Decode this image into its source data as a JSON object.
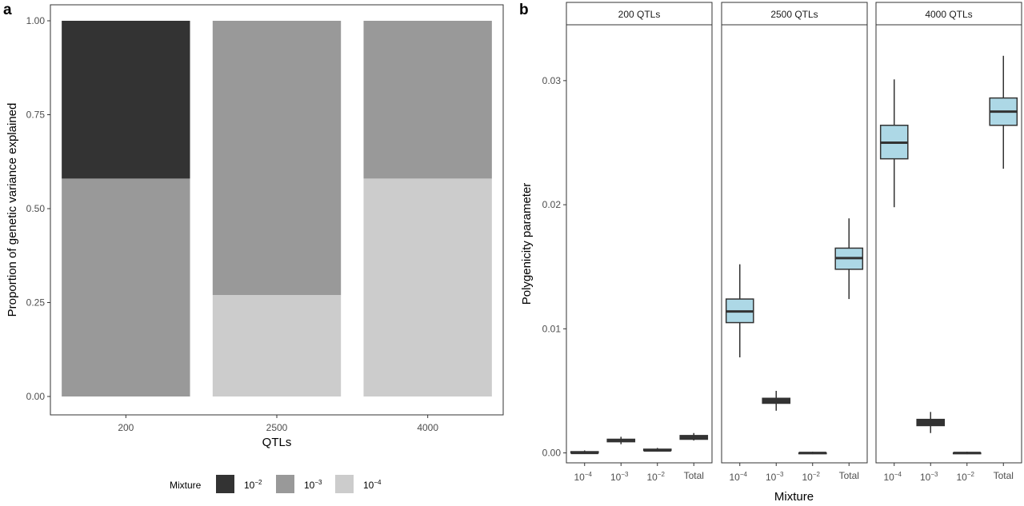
{
  "chart_data": [
    {
      "panel_label": "a",
      "type": "bar",
      "stacked": true,
      "categories": [
        "200",
        "2500",
        "4000"
      ],
      "series": [
        {
          "name": "10^-4",
          "values": [
            0.0,
            0.27,
            0.58
          ],
          "color": "#cccccc"
        },
        {
          "name": "10^-3",
          "values": [
            0.58,
            0.73,
            0.42
          ],
          "color": "#999999"
        },
        {
          "name": "10^-2",
          "values": [
            0.42,
            0.0,
            0.0
          ],
          "color": "#333333"
        }
      ],
      "xlabel": "QTLs",
      "ylabel": "Proportion of genetic variance explained",
      "ylim": [
        0,
        1
      ],
      "yticks": [
        "0.00",
        "0.25",
        "0.50",
        "0.75",
        "1.00"
      ],
      "grid": false,
      "legend": {
        "title": "Mixture",
        "placement": "bottom",
        "items": [
          {
            "base": "10",
            "exp": "−2",
            "color": "#333333"
          },
          {
            "base": "10",
            "exp": "−3",
            "color": "#999999"
          },
          {
            "base": "10",
            "exp": "−4",
            "color": "#cccccc"
          }
        ]
      }
    },
    {
      "panel_label": "b",
      "type": "box",
      "xlabel": "Mixture",
      "ylabel": "Polygenicity parameter",
      "ylim": [
        -0.0008,
        0.0345
      ],
      "yticks": [
        "0.00",
        "0.01",
        "0.02",
        "0.03"
      ],
      "ytick_values": [
        0.0,
        0.01,
        0.02,
        0.03
      ],
      "categories": [
        {
          "base": "10",
          "exp": "−4"
        },
        {
          "base": "10",
          "exp": "−3"
        },
        {
          "base": "10",
          "exp": "−2"
        },
        {
          "text": "Total"
        }
      ],
      "facets": [
        {
          "title": "200 QTLs",
          "boxes": [
            {
              "min": 0.0,
              "q1": 0.0,
              "median": 0.0,
              "q3": 0.0001,
              "max": 0.0002,
              "fill": "#333333"
            },
            {
              "min": 0.0007,
              "q1": 0.0009,
              "median": 0.001,
              "q3": 0.0011,
              "max": 0.0013,
              "fill": "#333333"
            },
            {
              "min": 0.0001,
              "q1": 0.0002,
              "median": 0.0002,
              "q3": 0.0003,
              "max": 0.0004,
              "fill": "#333333"
            },
            {
              "min": 0.001,
              "q1": 0.0011,
              "median": 0.0012,
              "q3": 0.0014,
              "max": 0.0016,
              "fill": "#333333"
            }
          ]
        },
        {
          "title": "2500 QTLs",
          "boxes": [
            {
              "min": 0.0077,
              "q1": 0.0105,
              "median": 0.0114,
              "q3": 0.0124,
              "max": 0.0152,
              "fill": "#add8e6"
            },
            {
              "min": 0.0034,
              "q1": 0.004,
              "median": 0.0042,
              "q3": 0.0044,
              "max": 0.005,
              "fill": "#333333"
            },
            {
              "min": -0.0001,
              "q1": 0.0,
              "median": 0.0,
              "q3": 0.0,
              "max": 0.0001,
              "fill": "#333333"
            },
            {
              "min": 0.0124,
              "q1": 0.0148,
              "median": 0.0157,
              "q3": 0.0165,
              "max": 0.0189,
              "fill": "#add8e6"
            }
          ]
        },
        {
          "title": "4000 QTLs",
          "boxes": [
            {
              "min": 0.0198,
              "q1": 0.0237,
              "median": 0.025,
              "q3": 0.0264,
              "max": 0.0301,
              "fill": "#add8e6"
            },
            {
              "min": 0.0016,
              "q1": 0.0022,
              "median": 0.0025,
              "q3": 0.0027,
              "max": 0.0033,
              "fill": "#333333"
            },
            {
              "min": -0.0001,
              "q1": 0.0,
              "median": 0.0,
              "q3": 0.0,
              "max": 0.0001,
              "fill": "#333333"
            },
            {
              "min": 0.0229,
              "q1": 0.0264,
              "median": 0.0275,
              "q3": 0.0286,
              "max": 0.032,
              "fill": "#add8e6"
            }
          ]
        }
      ],
      "grid": false
    }
  ]
}
